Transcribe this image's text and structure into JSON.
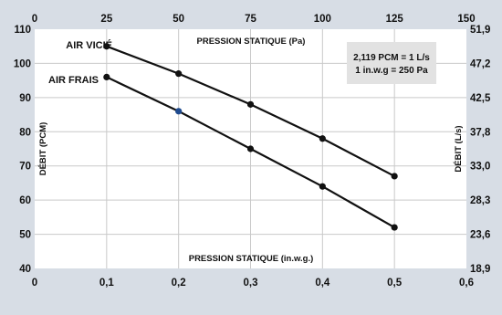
{
  "colors": {
    "background": "#d7dde5",
    "plot_background": "#ffffff",
    "grid": "#c9c9c9",
    "line": "#111111",
    "point": "#111111",
    "highlight_point": "#1f4b8f"
  },
  "chart_data": {
    "type": "line",
    "x": [
      0.1,
      0.2,
      0.3,
      0.4,
      0.5
    ],
    "xlabel": "PRESSION STATIQUE (in.w.g.)",
    "x_top_label": "PRESSION STATIQUE (Pa)",
    "ylabel": "DÉBIT (PCM)",
    "y_right_label": "DÉBIT (L/s)",
    "xlim": [
      0,
      0.6
    ],
    "ylim": [
      40,
      110
    ],
    "x_ticks": [
      "0",
      "0,1",
      "0,2",
      "0,3",
      "0,4",
      "0,5",
      "0,6"
    ],
    "x_top_ticks": [
      "0",
      "25",
      "50",
      "75",
      "100",
      "125",
      "150"
    ],
    "y_ticks": [
      "40",
      "50",
      "60",
      "70",
      "80",
      "90",
      "100",
      "110"
    ],
    "y_right_ticks": [
      "18,9",
      "23,6",
      "28,3",
      "33,0",
      "37,8",
      "42,5",
      "47,2",
      "51,9"
    ],
    "grid": true,
    "series": [
      {
        "name": "AIR VICIÉ",
        "values": [
          105,
          97,
          88,
          78,
          67
        ]
      },
      {
        "name": "AIR FRAIS",
        "values": [
          96,
          86,
          75,
          64,
          52
        ]
      }
    ],
    "annotation": [
      "2,119 PCM = 1 L/s",
      "1 in.w.g = 250 Pa"
    ]
  }
}
